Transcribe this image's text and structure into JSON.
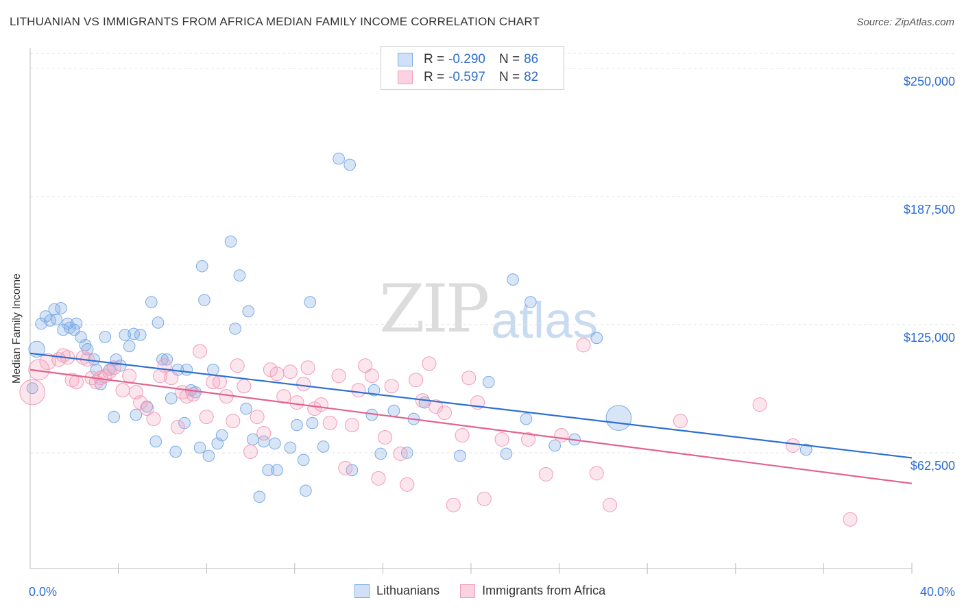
{
  "header": {
    "title": "LITHUANIAN VS IMMIGRANTS FROM AFRICA MEDIAN FAMILY INCOME CORRELATION CHART",
    "source": "Source: ZipAtlas.com"
  },
  "watermark": {
    "zip": "ZIP",
    "atlas": "atlas"
  },
  "legend": {
    "rows": [
      {
        "r_label": "R = ",
        "r_value": "-0.290",
        "n_label": "N = ",
        "n_value": "86",
        "color": "#7aaae6"
      },
      {
        "r_label": "R = ",
        "r_value": "-0.597",
        "n_label": "N = ",
        "n_value": "82",
        "color": "#f29ab6"
      }
    ]
  },
  "bottom_legend": {
    "series1": "Lithuanians",
    "series2": "Immigrants from Africa"
  },
  "chart_data": {
    "type": "scatter",
    "xlabel": "",
    "ylabel": "Median Family Income",
    "xlim": [
      0,
      40
    ],
    "ylim": [
      6000,
      260000
    ],
    "x_tick_labels": [
      "0.0%",
      "40.0%"
    ],
    "y_tick_labels": [
      "$250,000",
      "$187,500",
      "$125,000",
      "$62,500"
    ],
    "y_ticks": [
      250000,
      187500,
      125000,
      62500
    ],
    "grid": "horizontal dashed",
    "legend_position": "top-center",
    "series": [
      {
        "name": "Lithuanians",
        "color": "#7aaae6",
        "trend": {
          "x": [
            0,
            40
          ],
          "y": [
            111000,
            60000
          ]
        },
        "points": [
          [
            0.3,
            113000
          ],
          [
            0.5,
            125500
          ],
          [
            0.7,
            129000
          ],
          [
            0.9,
            127000
          ],
          [
            1.1,
            132500
          ],
          [
            1.4,
            133000
          ],
          [
            1.5,
            122500
          ],
          [
            1.7,
            125500
          ],
          [
            1.8,
            123500
          ],
          [
            2.0,
            122500
          ],
          [
            2.1,
            125500
          ],
          [
            2.3,
            119000
          ],
          [
            2.5,
            115000
          ],
          [
            2.6,
            113000
          ],
          [
            2.9,
            108000
          ],
          [
            3.0,
            103000
          ],
          [
            3.2,
            96000
          ],
          [
            3.4,
            119000
          ],
          [
            3.6,
            103000
          ],
          [
            3.8,
            80000
          ],
          [
            3.9,
            108000
          ],
          [
            4.1,
            105000
          ],
          [
            4.3,
            120000
          ],
          [
            4.5,
            114500
          ],
          [
            4.7,
            120500
          ],
          [
            4.8,
            81000
          ],
          [
            5.0,
            120000
          ],
          [
            5.3,
            85000
          ],
          [
            5.5,
            136000
          ],
          [
            5.7,
            68000
          ],
          [
            5.8,
            126000
          ],
          [
            6.0,
            108000
          ],
          [
            6.2,
            108000
          ],
          [
            6.4,
            89000
          ],
          [
            6.6,
            63000
          ],
          [
            6.7,
            103000
          ],
          [
            7.0,
            77000
          ],
          [
            7.1,
            103000
          ],
          [
            7.3,
            93000
          ],
          [
            7.5,
            92000
          ],
          [
            7.7,
            65000
          ],
          [
            7.8,
            153500
          ],
          [
            7.9,
            137000
          ],
          [
            8.1,
            61000
          ],
          [
            8.3,
            103000
          ],
          [
            8.5,
            67000
          ],
          [
            8.7,
            71000
          ],
          [
            9.1,
            165500
          ],
          [
            9.3,
            123000
          ],
          [
            9.5,
            149000
          ],
          [
            9.8,
            84000
          ],
          [
            9.9,
            131500
          ],
          [
            10.1,
            69000
          ],
          [
            10.4,
            41000
          ],
          [
            10.6,
            68000
          ],
          [
            10.8,
            54000
          ],
          [
            11.1,
            67000
          ],
          [
            11.2,
            54000
          ],
          [
            11.8,
            65000
          ],
          [
            12.1,
            76000
          ],
          [
            12.4,
            59000
          ],
          [
            12.5,
            44000
          ],
          [
            12.7,
            136000
          ],
          [
            12.8,
            77000
          ],
          [
            13.3,
            65500
          ],
          [
            14.0,
            206000
          ],
          [
            14.5,
            203000
          ],
          [
            14.6,
            54000
          ],
          [
            15.5,
            81000
          ],
          [
            15.6,
            93000
          ],
          [
            15.9,
            62000
          ],
          [
            16.5,
            83000
          ],
          [
            17.1,
            62500
          ],
          [
            17.4,
            79000
          ],
          [
            17.9,
            87000
          ],
          [
            19.5,
            61000
          ],
          [
            20.8,
            97000
          ],
          [
            21.6,
            62000
          ],
          [
            21.9,
            147000
          ],
          [
            22.5,
            79000
          ],
          [
            22.7,
            136000
          ],
          [
            23.8,
            66000
          ],
          [
            24.7,
            69000
          ],
          [
            25.7,
            118500
          ],
          [
            26.7,
            79500
          ],
          [
            35.2,
            64000
          ],
          [
            0.1,
            94000
          ],
          [
            1.2,
            127500
          ]
        ],
        "sizes": [
          14,
          10,
          10,
          10,
          10,
          10,
          10,
          10,
          10,
          10,
          10,
          10,
          10,
          10,
          10,
          10,
          10,
          10,
          10,
          10,
          10,
          10,
          10,
          10,
          10,
          10,
          10,
          10,
          10,
          10,
          10,
          10,
          10,
          10,
          10,
          10,
          10,
          10,
          10,
          10,
          10,
          10,
          10,
          10,
          10,
          10,
          10,
          10,
          10,
          10,
          10,
          10,
          10,
          10,
          10,
          10,
          10,
          10,
          10,
          10,
          10,
          10,
          10,
          10,
          10,
          10,
          10,
          10,
          10,
          10,
          10,
          10,
          10,
          10,
          10,
          10,
          10,
          10,
          10,
          10,
          10,
          10,
          10,
          10,
          22,
          10
        ]
      },
      {
        "name": "Immigrants from Africa",
        "color": "#f29ab6",
        "trend": {
          "x": [
            0,
            40
          ],
          "y": [
            103000,
            47500
          ]
        },
        "points": [
          [
            0.1,
            92000
          ],
          [
            0.4,
            103000
          ],
          [
            0.8,
            107000
          ],
          [
            1.3,
            108000
          ],
          [
            1.5,
            110000
          ],
          [
            1.7,
            109000
          ],
          [
            1.9,
            98000
          ],
          [
            2.1,
            97000
          ],
          [
            2.4,
            109000
          ],
          [
            2.6,
            108000
          ],
          [
            2.8,
            99000
          ],
          [
            3.0,
            97000
          ],
          [
            3.2,
            99000
          ],
          [
            3.4,
            100000
          ],
          [
            3.6,
            102000
          ],
          [
            3.8,
            104000
          ],
          [
            4.2,
            93000
          ],
          [
            4.5,
            100000
          ],
          [
            4.8,
            92000
          ],
          [
            5.0,
            87000
          ],
          [
            5.3,
            84000
          ],
          [
            5.6,
            79000
          ],
          [
            5.9,
            100000
          ],
          [
            6.1,
            105000
          ],
          [
            6.4,
            99000
          ],
          [
            6.7,
            75000
          ],
          [
            6.9,
            92000
          ],
          [
            7.1,
            90000
          ],
          [
            7.4,
            91000
          ],
          [
            7.7,
            112000
          ],
          [
            8.0,
            80000
          ],
          [
            8.3,
            97000
          ],
          [
            8.6,
            97000
          ],
          [
            8.9,
            90000
          ],
          [
            9.2,
            78000
          ],
          [
            9.4,
            105000
          ],
          [
            9.7,
            95000
          ],
          [
            10.0,
            63000
          ],
          [
            10.3,
            80000
          ],
          [
            10.6,
            72000
          ],
          [
            10.9,
            103000
          ],
          [
            11.2,
            101000
          ],
          [
            11.5,
            90000
          ],
          [
            11.8,
            102000
          ],
          [
            12.1,
            87000
          ],
          [
            12.4,
            96000
          ],
          [
            12.6,
            104000
          ],
          [
            12.9,
            84000
          ],
          [
            13.2,
            86000
          ],
          [
            13.6,
            77000
          ],
          [
            14.0,
            100000
          ],
          [
            14.3,
            55000
          ],
          [
            14.6,
            76000
          ],
          [
            14.9,
            93000
          ],
          [
            15.2,
            105000
          ],
          [
            15.5,
            100000
          ],
          [
            15.8,
            50000
          ],
          [
            16.1,
            70000
          ],
          [
            16.4,
            95000
          ],
          [
            16.8,
            62000
          ],
          [
            17.1,
            47000
          ],
          [
            17.5,
            98000
          ],
          [
            17.8,
            88000
          ],
          [
            18.1,
            106000
          ],
          [
            18.4,
            85000
          ],
          [
            18.8,
            82000
          ],
          [
            19.2,
            37000
          ],
          [
            19.6,
            71000
          ],
          [
            19.9,
            99000
          ],
          [
            20.3,
            87000
          ],
          [
            20.6,
            40000
          ],
          [
            21.4,
            69000
          ],
          [
            22.6,
            69000
          ],
          [
            23.4,
            52000
          ],
          [
            24.1,
            71000
          ],
          [
            25.1,
            115000
          ],
          [
            25.7,
            52500
          ],
          [
            26.3,
            37000
          ],
          [
            29.5,
            78000
          ],
          [
            33.1,
            86000
          ],
          [
            34.6,
            66000
          ],
          [
            37.2,
            30000
          ]
        ],
        "sizes": [
          22,
          18,
          14,
          12,
          12,
          12,
          12,
          12,
          12,
          12,
          12,
          12,
          12,
          12,
          12,
          12,
          12,
          12,
          12,
          12,
          12,
          12,
          12,
          12,
          12,
          12,
          12,
          12,
          12,
          12,
          12,
          12,
          12,
          12,
          12,
          12,
          12,
          12,
          12,
          12,
          12,
          12,
          12,
          12,
          12,
          12,
          12,
          12,
          12,
          12,
          12,
          12,
          12,
          12,
          12,
          12,
          12,
          12,
          12,
          12,
          12,
          12,
          12,
          12,
          12,
          12,
          12,
          12,
          12,
          12,
          12,
          12,
          12,
          12,
          12,
          12,
          12,
          12,
          12,
          12,
          12,
          12
        ]
      }
    ]
  }
}
